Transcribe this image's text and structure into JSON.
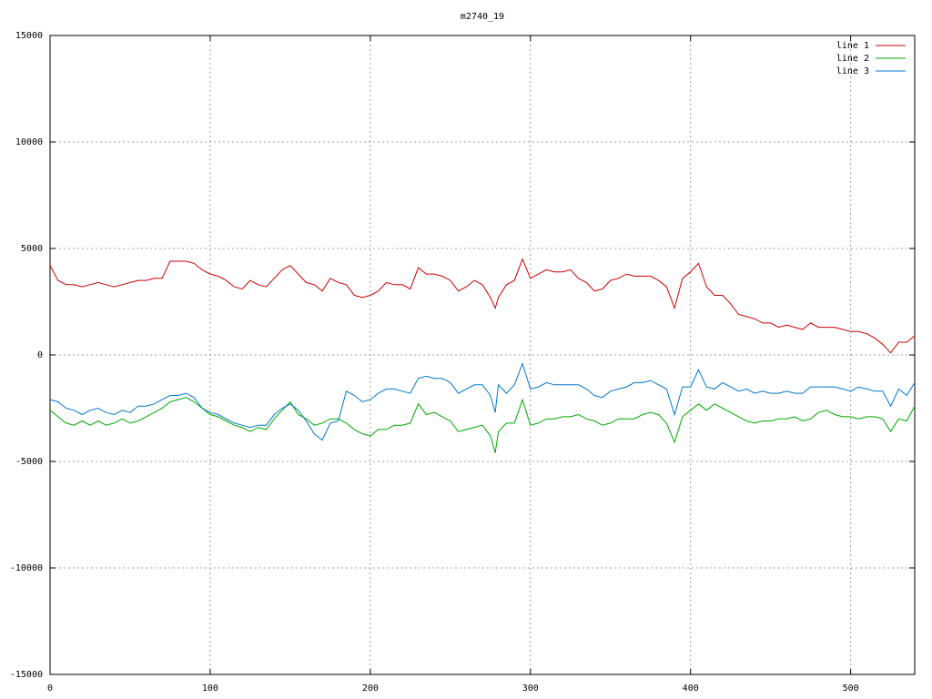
{
  "chart_data": {
    "type": "line",
    "title": "m2740_19",
    "x": [
      0,
      5,
      10,
      15,
      20,
      25,
      30,
      35,
      40,
      45,
      50,
      55,
      60,
      65,
      70,
      75,
      80,
      85,
      90,
      95,
      100,
      105,
      110,
      115,
      120,
      125,
      130,
      135,
      140,
      145,
      150,
      155,
      160,
      165,
      170,
      175,
      180,
      185,
      190,
      195,
      200,
      205,
      210,
      215,
      220,
      225,
      230,
      235,
      240,
      245,
      250,
      255,
      260,
      265,
      270,
      275,
      278,
      280,
      285,
      290,
      295,
      300,
      305,
      310,
      315,
      320,
      325,
      330,
      335,
      340,
      345,
      350,
      355,
      360,
      365,
      370,
      375,
      380,
      385,
      390,
      395,
      400,
      405,
      410,
      415,
      420,
      425,
      430,
      435,
      440,
      445,
      450,
      455,
      460,
      465,
      470,
      475,
      480,
      485,
      490,
      495,
      500,
      505,
      510,
      515,
      520,
      525,
      530,
      535,
      540
    ],
    "series": [
      {
        "name": "line 1",
        "color": "#cc0000",
        "values": [
          4200,
          3500,
          3300,
          3300,
          3200,
          3300,
          3400,
          3300,
          3200,
          3300,
          3400,
          3500,
          3500,
          3600,
          3600,
          4400,
          4400,
          4400,
          4300,
          4000,
          3800,
          3700,
          3500,
          3200,
          3100,
          3500,
          3300,
          3200,
          3600,
          4000,
          4200,
          3800,
          3400,
          3300,
          3000,
          3600,
          3400,
          3300,
          2800,
          2700,
          2800,
          3000,
          3400,
          3300,
          3300,
          3100,
          4100,
          3800,
          3800,
          3700,
          3500,
          3000,
          3200,
          3500,
          3300,
          2700,
          2200,
          2700,
          3300,
          3500,
          4500,
          3600,
          3800,
          4000,
          3900,
          3900,
          4000,
          3600,
          3400,
          3000,
          3100,
          3500,
          3600,
          3800,
          3700,
          3700,
          3700,
          3500,
          3200,
          2200,
          3600,
          3900,
          4300,
          3200,
          2800,
          2800,
          2400,
          1900,
          1800,
          1700,
          1500,
          1500,
          1300,
          1400,
          1300,
          1200,
          1500,
          1300,
          1300,
          1300,
          1200,
          1100,
          1100,
          1000,
          800,
          500,
          100,
          600,
          600,
          900
        ]
      },
      {
        "name": "line 2",
        "color": "#00aa00",
        "values": [
          -2600,
          -2900,
          -3200,
          -3300,
          -3100,
          -3300,
          -3100,
          -3300,
          -3200,
          -3000,
          -3200,
          -3100,
          -2900,
          -2700,
          -2500,
          -2200,
          -2100,
          -2000,
          -2200,
          -2500,
          -2800,
          -2900,
          -3100,
          -3300,
          -3400,
          -3600,
          -3400,
          -3500,
          -3000,
          -2600,
          -2200,
          -2800,
          -3000,
          -3300,
          -3200,
          -3000,
          -3000,
          -3200,
          -3500,
          -3700,
          -3800,
          -3500,
          -3500,
          -3300,
          -3300,
          -3200,
          -2300,
          -2800,
          -2700,
          -2900,
          -3100,
          -3600,
          -3500,
          -3400,
          -3300,
          -3800,
          -4600,
          -3600,
          -3200,
          -3200,
          -2100,
          -3300,
          -3200,
          -3000,
          -3000,
          -2900,
          -2900,
          -2800,
          -3000,
          -3100,
          -3300,
          -3200,
          -3000,
          -3000,
          -3000,
          -2800,
          -2700,
          -2800,
          -3200,
          -4100,
          -2900,
          -2600,
          -2300,
          -2600,
          -2300,
          -2500,
          -2700,
          -2900,
          -3100,
          -3200,
          -3100,
          -3100,
          -3000,
          -3000,
          -2900,
          -3100,
          -3000,
          -2700,
          -2600,
          -2800,
          -2900,
          -2900,
          -3000,
          -2900,
          -2900,
          -3000,
          -3600,
          -3000,
          -3100,
          -2400
        ]
      },
      {
        "name": "line 3",
        "color": "#0077cc",
        "values": [
          -2100,
          -2200,
          -2500,
          -2600,
          -2800,
          -2600,
          -2500,
          -2700,
          -2800,
          -2600,
          -2700,
          -2400,
          -2400,
          -2300,
          -2100,
          -1900,
          -1900,
          -1800,
          -2000,
          -2500,
          -2700,
          -2800,
          -3000,
          -3200,
          -3300,
          -3400,
          -3300,
          -3300,
          -2800,
          -2500,
          -2300,
          -2600,
          -3100,
          -3700,
          -4000,
          -3200,
          -3100,
          -1700,
          -1900,
          -2200,
          -2100,
          -1800,
          -1600,
          -1600,
          -1700,
          -1800,
          -1100,
          -1000,
          -1100,
          -1100,
          -1300,
          -1800,
          -1600,
          -1400,
          -1400,
          -1900,
          -2700,
          -1400,
          -1800,
          -1400,
          -400,
          -1600,
          -1500,
          -1300,
          -1400,
          -1400,
          -1400,
          -1400,
          -1600,
          -1900,
          -2000,
          -1700,
          -1600,
          -1500,
          -1300,
          -1300,
          -1200,
          -1400,
          -1600,
          -2800,
          -1500,
          -1500,
          -700,
          -1500,
          -1600,
          -1300,
          -1500,
          -1700,
          -1600,
          -1800,
          -1700,
          -1800,
          -1800,
          -1700,
          -1800,
          -1800,
          -1500,
          -1500,
          -1500,
          -1500,
          -1600,
          -1700,
          -1500,
          -1600,
          -1700,
          -1700,
          -2400,
          -1600,
          -1900,
          -1300
        ]
      }
    ],
    "xlim": [
      0,
      540
    ],
    "ylim": [
      -15000,
      15000
    ],
    "xticks": [
      0,
      100,
      200,
      300,
      400,
      500
    ],
    "yticks": [
      -15000,
      -10000,
      -5000,
      0,
      5000,
      10000,
      15000
    ],
    "grid": true,
    "legend": "top-right"
  }
}
